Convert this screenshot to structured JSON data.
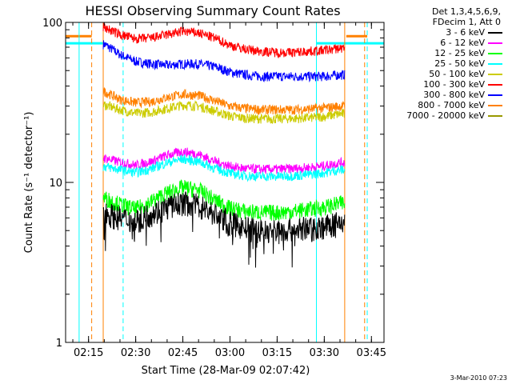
{
  "chart_data": {
    "type": "line",
    "title": "HESSI Observing Summary Count Rates",
    "xlabel": "Start Time (28-Mar-09 02:07:42)",
    "ylabel": "Count Rate (s⁻¹ detector⁻¹)",
    "yscale": "log",
    "ylim": [
      1,
      100
    ],
    "xlim": [
      "02:07:42",
      "03:49:00"
    ],
    "x_ticks": [
      "02:15",
      "02:30",
      "02:45",
      "03:00",
      "03:15",
      "03:30",
      "03:45"
    ],
    "y_ticks": [
      "1",
      "10",
      "100"
    ],
    "grid": false,
    "legend_position": "top-right",
    "legend_header": [
      "Det 1,3,4,5,6,9,",
      "FDecim 1, Att 0"
    ],
    "series": [
      {
        "name": "3 - 6 keV",
        "color": "#000000",
        "x": [
          "02:20",
          "02:25",
          "02:30",
          "02:35",
          "02:40",
          "02:45",
          "02:50",
          "02:55",
          "03:00",
          "03:05",
          "03:10",
          "03:15",
          "03:20",
          "03:25",
          "03:30",
          "03:35"
        ],
        "values": [
          6.5,
          6.0,
          5.8,
          6.4,
          7.0,
          7.5,
          7.2,
          6.4,
          5.6,
          5.2,
          5.0,
          5.0,
          5.1,
          5.2,
          5.3,
          5.6
        ]
      },
      {
        "name": "6 - 12 keV",
        "color": "#ff00ff",
        "x": [
          "02:20",
          "02:25",
          "02:30",
          "02:35",
          "02:40",
          "02:45",
          "02:50",
          "02:55",
          "03:00",
          "03:05",
          "03:10",
          "03:15",
          "03:20",
          "03:25",
          "03:30",
          "03:35"
        ],
        "values": [
          14.2,
          13.4,
          12.8,
          13.5,
          14.8,
          15.6,
          15.0,
          13.6,
          12.6,
          12.2,
          12.1,
          12.1,
          12.2,
          12.4,
          12.7,
          13.3
        ]
      },
      {
        "name": "12 - 25 keV",
        "color": "#00ff00",
        "x": [
          "02:20",
          "02:25",
          "02:30",
          "02:35",
          "02:40",
          "02:45",
          "02:50",
          "02:55",
          "03:00",
          "03:05",
          "03:10",
          "03:15",
          "03:20",
          "03:25",
          "03:30",
          "03:35"
        ],
        "values": [
          8.0,
          7.3,
          6.8,
          7.6,
          8.6,
          9.3,
          9.0,
          7.8,
          6.9,
          6.6,
          6.5,
          6.5,
          6.6,
          6.8,
          7.0,
          7.4
        ]
      },
      {
        "name": "25 - 50 keV",
        "color": "#00ffff",
        "x": [
          "02:20",
          "02:25",
          "02:30",
          "02:35",
          "02:40",
          "02:45",
          "02:50",
          "02:55",
          "03:00",
          "03:05",
          "03:10",
          "03:15",
          "03:20",
          "03:25",
          "03:30",
          "03:35"
        ],
        "values": [
          12.6,
          12.0,
          11.5,
          12.2,
          13.3,
          14.0,
          13.5,
          12.3,
          11.4,
          11.0,
          10.9,
          10.9,
          11.0,
          11.2,
          11.5,
          12.0
        ]
      },
      {
        "name": "50 - 100 keV",
        "color": "#cccc00",
        "x": [
          "02:20",
          "02:25",
          "02:30",
          "02:35",
          "02:40",
          "02:45",
          "02:50",
          "02:55",
          "03:00",
          "03:05",
          "03:10",
          "03:15",
          "03:20",
          "03:25",
          "03:30",
          "03:35"
        ],
        "values": [
          30.5,
          28.5,
          27.0,
          27.5,
          29.0,
          30.5,
          30.0,
          28.0,
          26.0,
          25.2,
          25.0,
          25.0,
          25.1,
          25.3,
          25.8,
          26.8
        ]
      },
      {
        "name": "100 - 300 keV",
        "color": "#ff0000",
        "x": [
          "02:20",
          "02:25",
          "02:30",
          "02:35",
          "02:40",
          "02:45",
          "02:50",
          "02:55",
          "03:00",
          "03:05",
          "03:10",
          "03:15",
          "03:20",
          "03:25",
          "03:30",
          "03:35"
        ],
        "values": [
          93,
          84,
          79,
          80,
          84,
          88,
          86,
          80,
          72,
          68,
          66,
          65,
          65,
          66,
          67,
          69
        ]
      },
      {
        "name": "300 - 800 keV",
        "color": "#0000ff",
        "x": [
          "02:20",
          "02:25",
          "02:30",
          "02:35",
          "02:40",
          "02:45",
          "02:50",
          "02:55",
          "03:00",
          "03:05",
          "03:10",
          "03:15",
          "03:20",
          "03:25",
          "03:30",
          "03:35"
        ],
        "values": [
          73,
          63,
          57,
          55,
          54,
          55,
          55,
          53,
          49,
          47,
          46,
          46,
          46,
          46,
          46,
          47
        ]
      },
      {
        "name": "800 - 7000 keV",
        "color": "#ff8000",
        "x": [
          "02:20",
          "02:25",
          "02:30",
          "02:35",
          "02:40",
          "02:45",
          "02:50",
          "02:55",
          "03:00",
          "03:05",
          "03:10",
          "03:15",
          "03:20",
          "03:25",
          "03:30",
          "03:35"
        ],
        "values": [
          37,
          33,
          31.5,
          32,
          34,
          35.5,
          35,
          32.5,
          30,
          29,
          28.5,
          28.5,
          28.5,
          28.8,
          29.2,
          30
        ]
      },
      {
        "name": "7000 - 20000 keV",
        "color": "#999900",
        "x": [],
        "values": []
      }
    ],
    "vertical_markers": [
      {
        "x": "02:12:00",
        "color": "#00ffff",
        "style": "solid"
      },
      {
        "x": "02:16:00",
        "color": "#ff8000",
        "style": "dashed"
      },
      {
        "x": "02:19:40",
        "color": "#ff8000",
        "style": "solid"
      },
      {
        "x": "02:26:00",
        "color": "#00ffff",
        "style": "dashed"
      },
      {
        "x": "03:27:30",
        "color": "#00ffff",
        "style": "solid"
      },
      {
        "x": "03:36:30",
        "color": "#ff8000",
        "style": "solid"
      },
      {
        "x": "03:42:50",
        "color": "#ff8000",
        "style": "dashed"
      },
      {
        "x": "03:43:40",
        "color": "#00ffff",
        "style": "dashed"
      }
    ],
    "state_bars": [
      {
        "from": "02:07:42",
        "to": "02:20:00",
        "level": 74,
        "color": "#00ffff"
      },
      {
        "from": "02:07:42",
        "to": "02:16:00",
        "level": 82,
        "color": "#ff8000"
      },
      {
        "from": "03:27:30",
        "to": "03:49:00",
        "level": 74,
        "color": "#00ffff"
      },
      {
        "from": "03:37:00",
        "to": "03:43:40",
        "level": 82,
        "color": "#ff8000"
      }
    ]
  },
  "footer": "3-Mar-2010 07:23"
}
